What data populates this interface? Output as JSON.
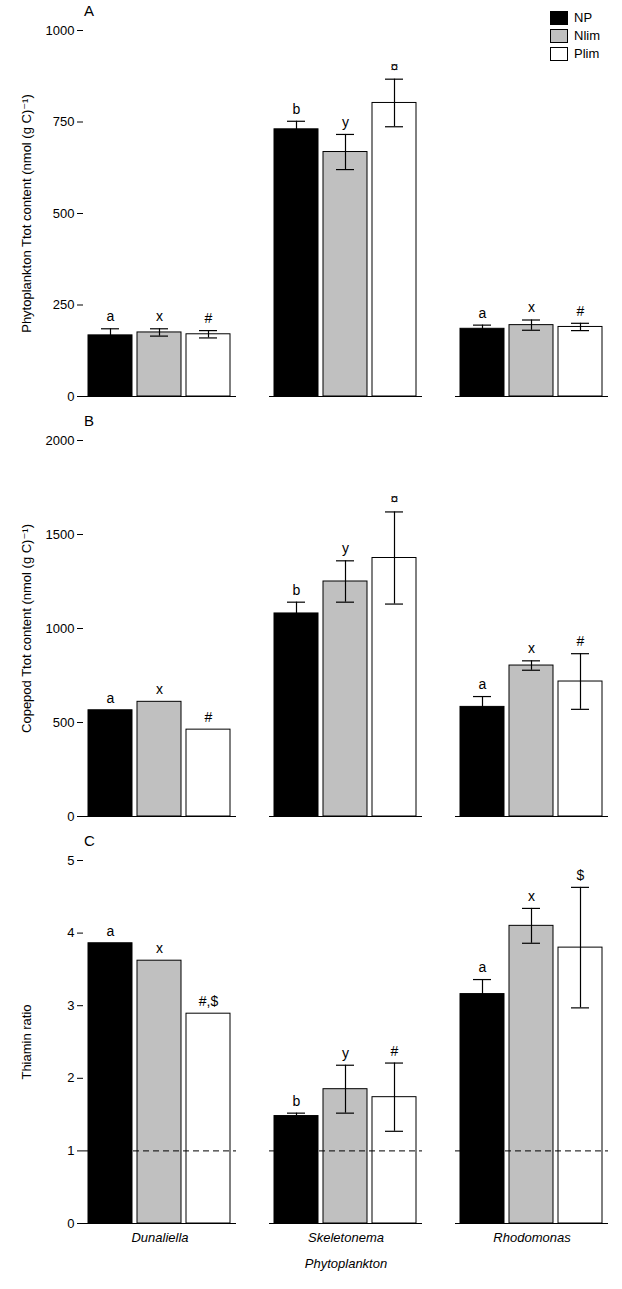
{
  "chart_data": [
    {
      "type": "bar",
      "title": "A",
      "y_label": "Phytoplankton Ttot content (nmol (g C)⁻¹)",
      "categories": [
        "Dunaliella",
        "Skeletonema",
        "Rhodomonas"
      ],
      "series": [
        {
          "name": "NP",
          "color": "#000000",
          "values": [
            167,
            730,
            185
          ],
          "errors": [
            18,
            22,
            10
          ],
          "annotations": [
            "a",
            "b",
            "a"
          ]
        },
        {
          "name": "Nlim",
          "color": "#c0c0c0",
          "values": [
            175,
            668,
            195
          ],
          "errors": [
            10,
            48,
            14
          ],
          "annotations": [
            "x",
            "y",
            "x"
          ]
        },
        {
          "name": "Plim",
          "color": "#ffffff",
          "values": [
            170,
            802,
            190
          ],
          "errors": [
            10,
            65,
            10
          ],
          "annotations": [
            "#",
            "¤",
            "#"
          ]
        }
      ],
      "ylim": [
        0,
        1000
      ],
      "yticks": [
        0,
        250,
        500,
        750,
        1000
      ],
      "legend": "top-right"
    },
    {
      "type": "bar",
      "title": "B",
      "y_label": "Copepod Ttot content (nmol (g C)⁻¹)",
      "categories": [
        "Dunaliella",
        "Skeletonema",
        "Rhodomonas"
      ],
      "series": [
        {
          "name": "NP",
          "color": "#000000",
          "values": [
            565,
            1080,
            583
          ],
          "errors": [
            null,
            60,
            55
          ],
          "annotations": [
            "a",
            "b",
            "a"
          ]
        },
        {
          "name": "Nlim",
          "color": "#c0c0c0",
          "values": [
            610,
            1250,
            803
          ],
          "errors": [
            null,
            110,
            25
          ],
          "annotations": [
            "x",
            "y",
            "x"
          ]
        },
        {
          "name": "Plim",
          "color": "#ffffff",
          "values": [
            462,
            1375,
            718
          ],
          "errors": [
            null,
            245,
            148
          ],
          "annotations": [
            "#",
            "¤",
            "#"
          ]
        }
      ],
      "ylim": [
        0,
        2000
      ],
      "yticks": [
        0,
        500,
        1000,
        1500,
        2000
      ]
    },
    {
      "type": "bar",
      "title": "C",
      "y_label": "Thiamin ratio",
      "x_label": "Phytoplankton",
      "categories": [
        "Dunaliella",
        "Skeletonema",
        "Rhodomonas"
      ],
      "series": [
        {
          "name": "NP",
          "color": "#000000",
          "values": [
            3.86,
            1.48,
            3.16
          ],
          "errors": [
            null,
            0.04,
            0.2
          ],
          "annotations": [
            "a",
            "b",
            "a"
          ]
        },
        {
          "name": "Nlim",
          "color": "#c0c0c0",
          "values": [
            3.62,
            1.85,
            4.1
          ],
          "errors": [
            null,
            0.33,
            0.24
          ],
          "annotations": [
            "x",
            "y",
            "x"
          ]
        },
        {
          "name": "Plim",
          "color": "#ffffff",
          "values": [
            2.89,
            1.74,
            3.8
          ],
          "errors": [
            null,
            0.47,
            0.83
          ],
          "annotations": [
            "#,$",
            "#",
            "$"
          ]
        }
      ],
      "ylim": [
        0,
        5
      ],
      "yticks": [
        0,
        1,
        2,
        3,
        4,
        5
      ],
      "hline": 1,
      "line_style": "dashed"
    }
  ]
}
